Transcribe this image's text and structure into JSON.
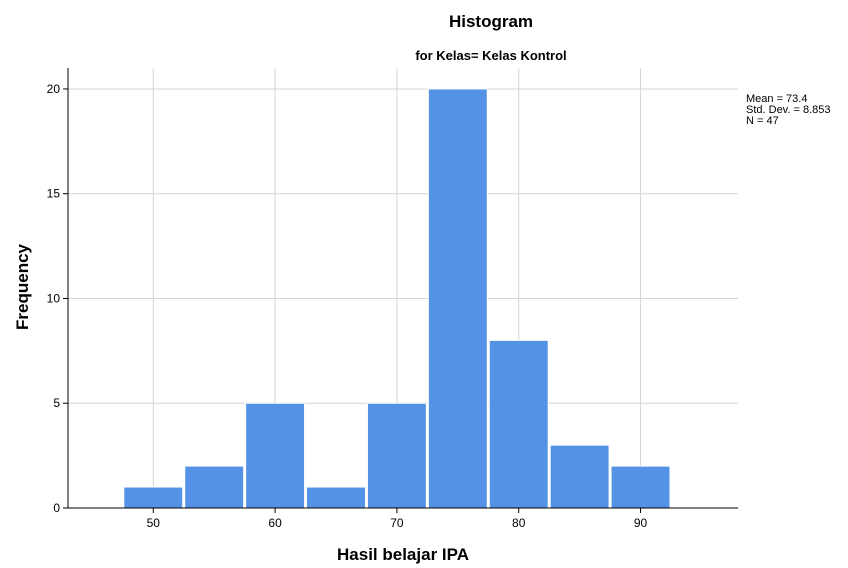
{
  "chart_data": {
    "type": "bar",
    "title": "Histogram",
    "subtitle": "for Kelas= Kelas Kontrol",
    "xlabel": "Hasil belajar IPA",
    "ylabel": "Frequency",
    "bin_edges": [
      47.5,
      52.5,
      57.5,
      62.5,
      67.5,
      72.5,
      77.5,
      82.5,
      87.5,
      92.5
    ],
    "values": [
      1,
      2,
      5,
      1,
      5,
      20,
      8,
      3,
      2
    ],
    "xlim": [
      43,
      98
    ],
    "ylim": [
      0,
      21
    ],
    "x_ticks": [
      50,
      60,
      70,
      80,
      90
    ],
    "y_ticks": [
      0,
      5,
      10,
      15,
      20
    ],
    "grid": true,
    "bar_color": "#5392e4",
    "stats": [
      "Mean = 73.4",
      "Std. Dev. = 8.853",
      "N = 47"
    ]
  }
}
